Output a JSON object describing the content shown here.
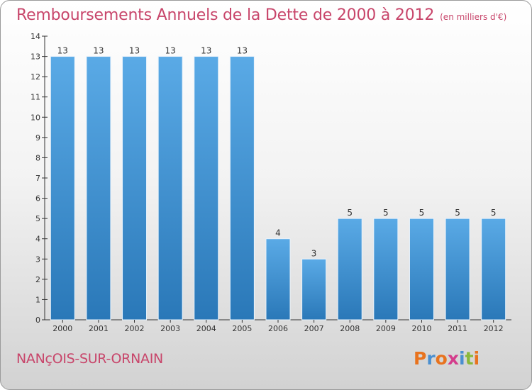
{
  "chart_data": {
    "type": "bar",
    "title": "Remboursements Annuels de la Dette de 2000 à 2012",
    "subtitle": "(en milliers d'€)",
    "categories": [
      "2000",
      "2001",
      "2002",
      "2003",
      "2004",
      "2005",
      "2006",
      "2007",
      "2008",
      "2009",
      "2010",
      "2011",
      "2012"
    ],
    "values": [
      13,
      13,
      13,
      13,
      13,
      13,
      4,
      3,
      5,
      5,
      5,
      5,
      5
    ],
    "data_labels": [
      "13",
      "13",
      "13",
      "13",
      "13",
      "13",
      "4",
      "3",
      "5",
      "5",
      "5",
      "5",
      "5"
    ],
    "ylim": [
      0,
      14
    ],
    "yticks": [
      "0",
      "1",
      "2",
      "3",
      "4",
      "5",
      "6",
      "7",
      "8",
      "9",
      "10",
      "11",
      "12",
      "13",
      "14"
    ],
    "xlabel": "",
    "ylabel": "",
    "grid": false,
    "bar_color_top": "#5aaae6",
    "bar_color_bottom": "#2a78b8"
  },
  "footer": {
    "commune": "NANçOIS-SUR-ORNAIN",
    "brand": "Proxiti",
    "brand_colors": [
      "#e8731e",
      "#4a8fd0",
      "#e8731e",
      "#d43d8c",
      "#4a8fd0",
      "#8ab83a",
      "#e8731e"
    ]
  }
}
